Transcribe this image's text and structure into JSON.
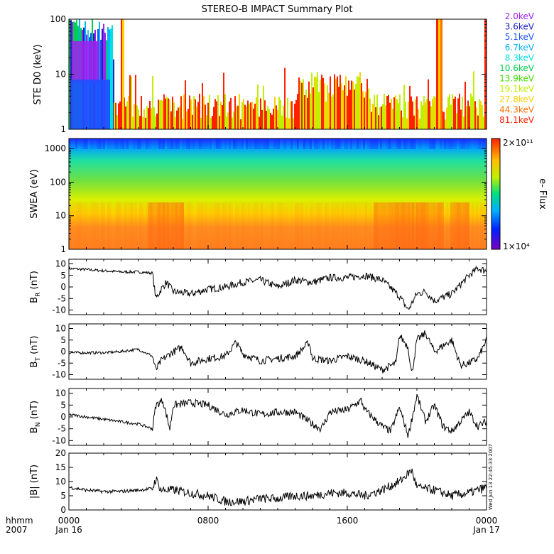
{
  "title": "STEREO-B IMPACT Summary Plot",
  "stamp": "Wed Jun 13 22:45:33 2007",
  "time_axis": {
    "row1_label": "hhmm",
    "row2_label": "2007",
    "ticks": [
      {
        "time": "0000",
        "date": "Jan 16",
        "hour": 0
      },
      {
        "time": "0800",
        "date": "",
        "hour": 8
      },
      {
        "time": "1600",
        "date": "",
        "hour": 16
      },
      {
        "time": "0000",
        "date": "Jan 17",
        "hour": 24
      }
    ],
    "range_hours": [
      0,
      24
    ]
  },
  "chart_data": [
    {
      "type": "line",
      "panel": "ste",
      "ylabel": "STE D0 (keV)",
      "yscale": "log",
      "ylim": [
        1,
        100
      ],
      "yticks": [
        "1",
        "10",
        "100"
      ],
      "channels": [
        {
          "name": "2.0keV",
          "color": "#a020f0"
        },
        {
          "name": "3.6keV",
          "color": "#2020c0"
        },
        {
          "name": "5.1keV",
          "color": "#1e50ff"
        },
        {
          "name": "6.7keV",
          "color": "#00b4ff"
        },
        {
          "name": "8.3keV",
          "color": "#00e0e0"
        },
        {
          "name": "10.6keV",
          "color": "#00d050"
        },
        {
          "name": "13.9keV",
          "color": "#40e000"
        },
        {
          "name": "19.1keV",
          "color": "#c0f000"
        },
        {
          "name": "27.8keV",
          "color": "#ffd000"
        },
        {
          "name": "44.3keV",
          "color": "#ff7000"
        },
        {
          "name": "81.1keV",
          "color": "#ff2000"
        }
      ]
    },
    {
      "type": "heatmap",
      "panel": "swea",
      "ylabel": "SWEA (eV)",
      "yscale": "log",
      "ylim": [
        1,
        2000
      ],
      "yticks": [
        "1",
        "10",
        "100",
        "1000"
      ],
      "colorbar": {
        "label": "e- Flux",
        "max": "2×10¹¹",
        "min": "1×10⁴"
      }
    },
    {
      "type": "line",
      "panel": "br",
      "ylabel_main": "B",
      "ylabel_sub": "R",
      "ylabel_unit": " (nT)",
      "ylim": [
        -12,
        12
      ],
      "yticks": [
        -10,
        -5,
        0,
        5,
        10
      ],
      "keypoints": [
        [
          0,
          8
        ],
        [
          1,
          7.5
        ],
        [
          2,
          7
        ],
        [
          3,
          6.5
        ],
        [
          4,
          6.5
        ],
        [
          4.8,
          6
        ],
        [
          5,
          -5
        ],
        [
          5.3,
          -1
        ],
        [
          5.6,
          2
        ],
        [
          6,
          -2
        ],
        [
          7,
          -3
        ],
        [
          8,
          -1
        ],
        [
          9,
          0
        ],
        [
          10,
          2
        ],
        [
          11,
          3
        ],
        [
          12,
          0
        ],
        [
          13,
          3
        ],
        [
          14,
          2
        ],
        [
          15,
          4
        ],
        [
          16,
          4
        ],
        [
          17,
          5
        ],
        [
          18,
          3
        ],
        [
          19,
          -4
        ],
        [
          19.5,
          -10
        ],
        [
          20,
          -3
        ],
        [
          20.5,
          -2
        ],
        [
          21,
          -6
        ],
        [
          22,
          -3
        ],
        [
          23,
          5
        ],
        [
          23.5,
          8
        ],
        [
          24,
          7
        ]
      ]
    },
    {
      "type": "line",
      "panel": "bt",
      "ylabel_main": "B",
      "ylabel_sub": "T",
      "ylabel_unit": " (nT)",
      "ylim": [
        -12,
        12
      ],
      "yticks": [
        -10,
        -5,
        0,
        5,
        10
      ],
      "keypoints": [
        [
          0,
          -0.5
        ],
        [
          2,
          -0.5
        ],
        [
          3,
          0
        ],
        [
          4,
          1
        ],
        [
          4.8,
          -2
        ],
        [
          5,
          -8
        ],
        [
          5.3,
          -4
        ],
        [
          5.8,
          -1
        ],
        [
          6.5,
          2
        ],
        [
          7,
          -5
        ],
        [
          8,
          -3
        ],
        [
          9,
          -2
        ],
        [
          9.6,
          4
        ],
        [
          10,
          -1
        ],
        [
          11,
          -4
        ],
        [
          12,
          -3
        ],
        [
          13,
          -2
        ],
        [
          13.8,
          4
        ],
        [
          14,
          -3
        ],
        [
          15,
          -4
        ],
        [
          16,
          -2
        ],
        [
          17,
          -4
        ],
        [
          18,
          -8
        ],
        [
          18.8,
          -5
        ],
        [
          19,
          7
        ],
        [
          19.5,
          2
        ],
        [
          19.7,
          -10
        ],
        [
          20,
          5
        ],
        [
          20.5,
          8
        ],
        [
          21,
          0
        ],
        [
          22,
          5
        ],
        [
          22.5,
          -6
        ],
        [
          23,
          -5
        ],
        [
          23.5,
          -3
        ],
        [
          24,
          5
        ]
      ]
    },
    {
      "type": "line",
      "panel": "bn",
      "ylabel_main": "B",
      "ylabel_sub": "N",
      "ylabel_unit": " (nT)",
      "ylim": [
        -12,
        12
      ],
      "yticks": [
        -10,
        -5,
        0,
        5,
        10
      ],
      "keypoints": [
        [
          0,
          1
        ],
        [
          1,
          0
        ],
        [
          2,
          -1
        ],
        [
          3,
          -2
        ],
        [
          4,
          -3
        ],
        [
          4.8,
          -5
        ],
        [
          5,
          5
        ],
        [
          5.4,
          7
        ],
        [
          5.8,
          -5
        ],
        [
          6,
          5
        ],
        [
          7,
          6
        ],
        [
          8,
          5
        ],
        [
          9,
          1
        ],
        [
          10,
          3
        ],
        [
          11,
          1
        ],
        [
          12,
          2
        ],
        [
          13,
          2
        ],
        [
          14,
          -3
        ],
        [
          14.5,
          -5
        ],
        [
          15,
          2
        ],
        [
          16,
          3
        ],
        [
          16.8,
          7
        ],
        [
          17,
          3
        ],
        [
          18,
          -4
        ],
        [
          18.5,
          -6
        ],
        [
          19,
          4
        ],
        [
          19.5,
          -8
        ],
        [
          20,
          9
        ],
        [
          20.5,
          -2
        ],
        [
          21,
          5
        ],
        [
          21.5,
          -4
        ],
        [
          22,
          -6
        ],
        [
          23,
          2
        ],
        [
          23.5,
          -4
        ],
        [
          24,
          -2
        ]
      ]
    },
    {
      "type": "line",
      "panel": "bmag",
      "ylabel": "|B| (nT)",
      "ylim": [
        0,
        20
      ],
      "yticks": [
        0,
        5,
        10,
        15,
        20
      ],
      "keypoints": [
        [
          0,
          8
        ],
        [
          1,
          7
        ],
        [
          2,
          6.5
        ],
        [
          3,
          6.5
        ],
        [
          4,
          7
        ],
        [
          4.8,
          7.5
        ],
        [
          5,
          11
        ],
        [
          5.3,
          7
        ],
        [
          6,
          7
        ],
        [
          7,
          6
        ],
        [
          8,
          5
        ],
        [
          9,
          3
        ],
        [
          10,
          3
        ],
        [
          11,
          4
        ],
        [
          12,
          4
        ],
        [
          13,
          5
        ],
        [
          14,
          5
        ],
        [
          15,
          6
        ],
        [
          16,
          6
        ],
        [
          17,
          5
        ],
        [
          18,
          7
        ],
        [
          19,
          10
        ],
        [
          19.7,
          14
        ],
        [
          20,
          8
        ],
        [
          21,
          7
        ],
        [
          22,
          5
        ],
        [
          23,
          6
        ],
        [
          24,
          8
        ]
      ]
    }
  ]
}
